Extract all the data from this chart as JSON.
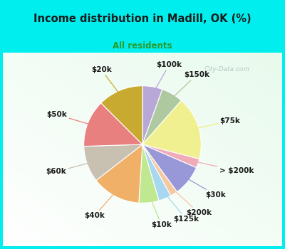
{
  "title": "Income distribution in Madill, OK (%)",
  "subtitle": "All residents",
  "title_color": "#1a1a1a",
  "subtitle_color": "#2a9a2a",
  "bg_outer": "#00EEEE",
  "watermark": "City-Data.com",
  "labels": [
    "$100k",
    "$150k",
    "$75k",
    "> $200k",
    "$30k",
    "$200k",
    "$125k",
    "$10k",
    "$40k",
    "$60k",
    "$50k",
    "$20k"
  ],
  "values": [
    5.5,
    6.0,
    17.5,
    2.5,
    8.5,
    2.0,
    3.5,
    5.5,
    13.5,
    10.0,
    13.0,
    12.5
  ],
  "colors": [
    "#b8a8d8",
    "#aec8a0",
    "#f0f090",
    "#f0aab8",
    "#9898d8",
    "#f5c8a0",
    "#a8d8f0",
    "#c0e890",
    "#f0b068",
    "#c8c0b0",
    "#e88080",
    "#c8aa30"
  ],
  "startangle": 90,
  "label_color": "#1a1a1a",
  "label_fontsize": 7.5,
  "line_colors": [
    "#b8a8d8",
    "#aec8a0",
    "#eeee80",
    "#f0aab8",
    "#9898d8",
    "#f5c8a0",
    "#a8d8f0",
    "#c0e890",
    "#f0b068",
    "#c8c0b0",
    "#e88080",
    "#c8aa30"
  ]
}
